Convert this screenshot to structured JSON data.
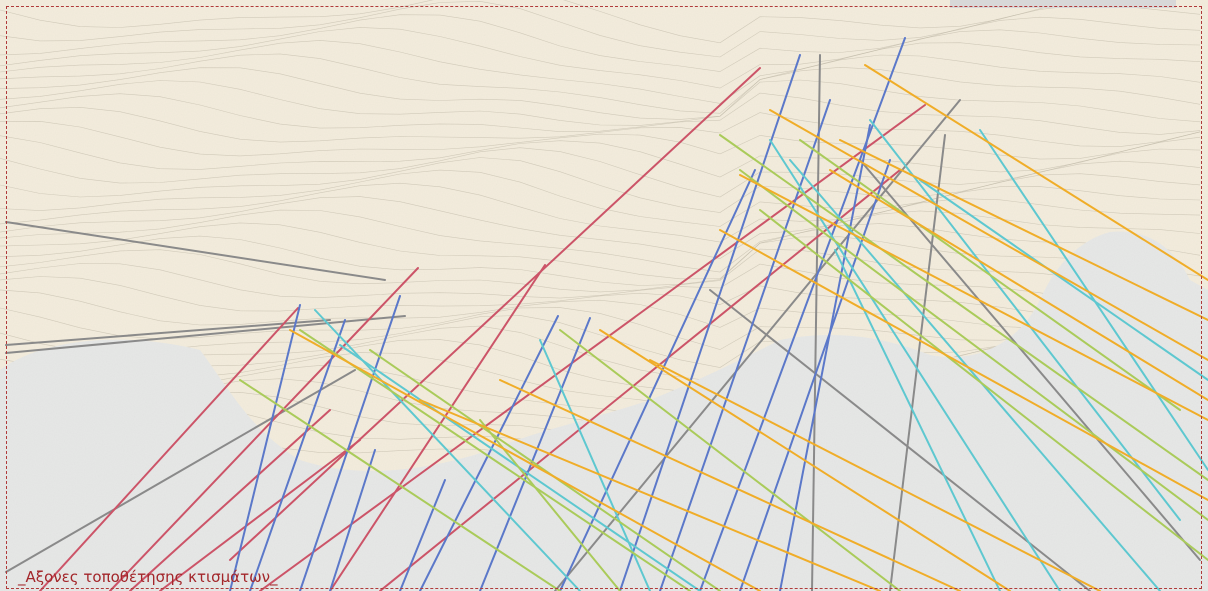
{
  "caption": "_Αξονες τοποθέτησης κτισμάτων_",
  "colors": {
    "terrain": "#f3ecdc",
    "contour": "#b7ae9c",
    "sea": "#e6e7e6",
    "frame": "#b03a3a",
    "caption": "#a3262a",
    "axis_grey": "#8a8a8a",
    "axis_red": "#cc5468",
    "axis_blue": "#5b78c9",
    "axis_cyan": "#5ec8d0",
    "axis_green": "#aacb5a",
    "axis_orange": "#f0ad28"
  }
}
